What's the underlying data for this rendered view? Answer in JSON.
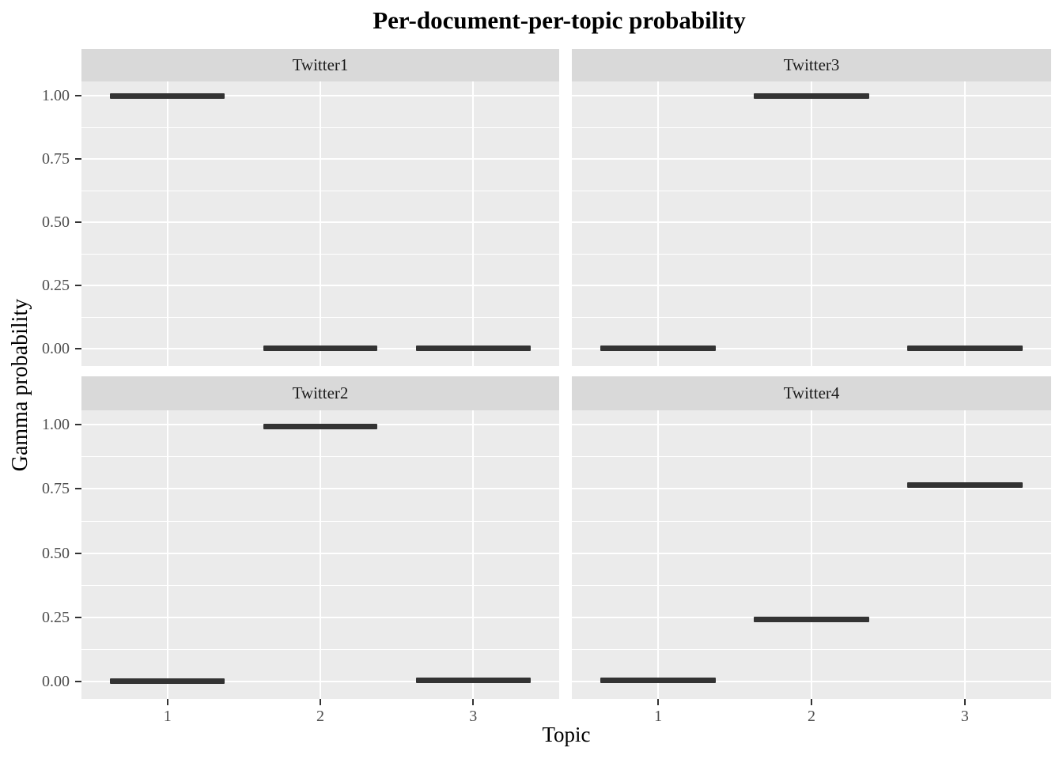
{
  "chart_data": {
    "type": "segment",
    "mark": "thick horizontal segment per category (boxplot of a single value per document-topic pair)",
    "title": "Per-document-per-topic probability",
    "xlabel": "Topic",
    "ylabel": "Gamma probability",
    "categories": [
      "1",
      "2",
      "3"
    ],
    "ytick_labels": [
      "0.00",
      "0.25",
      "0.50",
      "0.75",
      "1.00"
    ],
    "ytick_values": [
      0,
      0.25,
      0.5,
      0.75,
      1
    ],
    "ylim": [
      -0.05,
      1.05
    ],
    "grid": {
      "major_h": [
        0,
        0.25,
        0.5,
        0.75,
        1
      ],
      "minor_h": [
        0.125,
        0.375,
        0.625,
        0.875
      ],
      "vertical_at_categories": true,
      "color": "#FFFFFF"
    },
    "legend": "none",
    "facet_layout": "2x2 grid, row-major",
    "facets": [
      {
        "label": "Twitter1",
        "row": 0,
        "col": 0,
        "values": [
          0.997,
          0.002,
          0.002
        ]
      },
      {
        "label": "Twitter3",
        "row": 0,
        "col": 1,
        "values": [
          0.003,
          0.998,
          0.002
        ]
      },
      {
        "label": "Twitter2",
        "row": 1,
        "col": 0,
        "values": [
          0.003,
          0.993,
          0.006
        ]
      },
      {
        "label": "Twitter4",
        "row": 1,
        "col": 1,
        "values": [
          0.004,
          0.241,
          0.765
        ]
      }
    ]
  },
  "colors": {
    "background": "#FFFFFF",
    "panel_bg": "#EBEBEB",
    "strip_bg": "#D9D9D9",
    "gridline": "#FFFFFF",
    "segment": "#333333",
    "tick_mark": "#333333",
    "axis_text": "#4D4D4D",
    "strip_text": "#1A1A1A",
    "title_text": "#000000"
  }
}
